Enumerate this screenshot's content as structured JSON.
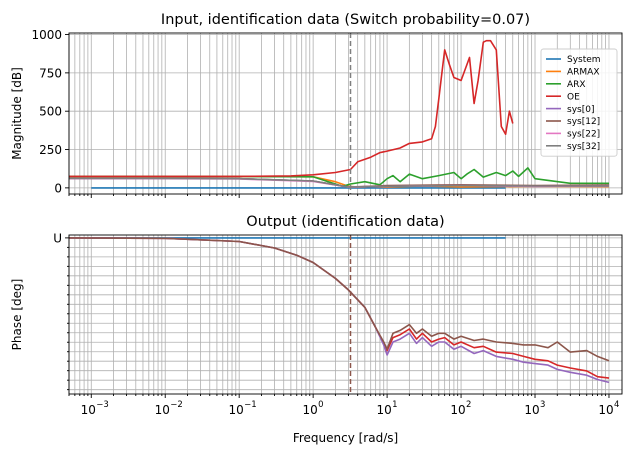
{
  "chart_data": [
    {
      "type": "line",
      "title": "Input, identification data (Switch probability=0.07)",
      "xlabel": "",
      "ylabel": "Magnitude [dB]",
      "xscale": "log",
      "xlim": [
        0.0005,
        15000
      ],
      "ylim": [
        -40,
        1010
      ],
      "yticks": [
        "0",
        "250",
        "500",
        "750",
        "1000"
      ],
      "grid": true,
      "legend_position": "right",
      "vline_x": 3.2,
      "series": [
        {
          "name": "System",
          "color": "#1f77b4",
          "x": [
            0.001,
            400
          ],
          "y": [
            0,
            0
          ]
        },
        {
          "name": "ARMAX",
          "color": "#ff7f0e",
          "x": [
            0.0005,
            0.01,
            0.1,
            0.5,
            1,
            2,
            3,
            4,
            6,
            10,
            30,
            100,
            1000,
            10000
          ],
          "y": [
            75,
            75,
            75,
            73,
            72,
            40,
            10,
            5,
            8,
            5,
            12,
            6,
            10,
            8
          ]
        },
        {
          "name": "ARX",
          "color": "#2ca02c",
          "x": [
            0.0005,
            0.1,
            1,
            1.6,
            2.5,
            3.2,
            5,
            8,
            10,
            12,
            15,
            20,
            30,
            50,
            80,
            100,
            120,
            150,
            200,
            300,
            400,
            500,
            600,
            800,
            1000,
            3000,
            10000
          ],
          "y": [
            75,
            74,
            72,
            40,
            10,
            25,
            40,
            20,
            60,
            80,
            40,
            90,
            60,
            80,
            100,
            60,
            90,
            120,
            70,
            100,
            80,
            110,
            75,
            130,
            60,
            30,
            30
          ]
        },
        {
          "name": "OE",
          "color": "#d62728",
          "x": [
            0.0005,
            0.01,
            0.1,
            0.5,
            1,
            2,
            3.2,
            4,
            6,
            8,
            10,
            15,
            20,
            30,
            40,
            45,
            50,
            55,
            60,
            70,
            80,
            100,
            130,
            150,
            170,
            200,
            220,
            250,
            300,
            350,
            400,
            450,
            500
          ],
          "y": [
            75,
            75,
            75,
            78,
            85,
            100,
            120,
            170,
            200,
            230,
            240,
            260,
            290,
            300,
            320,
            400,
            580,
            750,
            900,
            800,
            720,
            700,
            850,
            550,
            700,
            950,
            960,
            960,
            900,
            400,
            350,
            500,
            420
          ]
        },
        {
          "name": "sys[0]",
          "color": "#9467bd",
          "x": [
            0.0005,
            0.01,
            0.1,
            1,
            3,
            10,
            100,
            1000,
            10000
          ],
          "y": [
            62,
            62,
            60,
            45,
            5,
            10,
            15,
            10,
            12
          ]
        },
        {
          "name": "sys[12]",
          "color": "#8c564b",
          "x": [
            0.0005,
            0.01,
            0.1,
            1,
            3,
            10,
            100,
            1000,
            10000
          ],
          "y": [
            62,
            62,
            60,
            45,
            5,
            15,
            20,
            15,
            18
          ]
        },
        {
          "name": "sys[22]",
          "color": "#e377c2",
          "x": [
            0.0005,
            0.01,
            0.1,
            1,
            3,
            10,
            100,
            1000,
            10000
          ],
          "y": [
            60,
            60,
            58,
            42,
            5,
            10,
            15,
            10,
            12
          ]
        },
        {
          "name": "sys[32]",
          "color": "#7f7f7f",
          "x": [
            0.0005,
            0.01,
            0.1,
            1,
            3,
            10,
            100,
            1000,
            10000
          ],
          "y": [
            62,
            62,
            60,
            45,
            5,
            10,
            15,
            12,
            12
          ]
        }
      ]
    },
    {
      "type": "line",
      "title": "Output (identification data)",
      "xlabel": "Frequency [rad/s]",
      "ylabel": "Phase [deg]",
      "xscale": "log",
      "xlim": [
        0.0005,
        15000
      ],
      "ylim": [
        -1.08,
        0.02
      ],
      "yticks": [
        "U"
      ],
      "xticks": [
        0.001,
        0.01,
        0.1,
        1,
        10,
        100,
        1000,
        10000
      ],
      "xtick_labels": [
        {
          "base": "10",
          "exp": "−3"
        },
        {
          "base": "10",
          "exp": "−2"
        },
        {
          "base": "10",
          "exp": "−1"
        },
        {
          "base": "10",
          "exp": "0"
        },
        {
          "base": "10",
          "exp": "1"
        },
        {
          "base": "10",
          "exp": "2"
        },
        {
          "base": "10",
          "exp": "3"
        },
        {
          "base": "10",
          "exp": "4"
        }
      ],
      "grid": true,
      "vline_x": 3.2,
      "series": [
        {
          "name": "System",
          "color": "#1f77b4",
          "x": [
            0.001,
            400
          ],
          "y": [
            0,
            0
          ]
        },
        {
          "name": "OE",
          "color": "#d62728",
          "x": [
            0.0005,
            0.01,
            0.1,
            0.3,
            0.6,
            1,
            2,
            3,
            5,
            7,
            9,
            10,
            12,
            15,
            20,
            25,
            30,
            40,
            50,
            60,
            80,
            100,
            150,
            200,
            300,
            500,
            700,
            1000,
            1500,
            2000,
            3000,
            5000,
            7000,
            10000
          ],
          "y": [
            0,
            -0.003,
            -0.025,
            -0.07,
            -0.12,
            -0.17,
            -0.28,
            -0.36,
            -0.48,
            -0.62,
            -0.73,
            -0.78,
            -0.69,
            -0.67,
            -0.63,
            -0.7,
            -0.66,
            -0.72,
            -0.7,
            -0.69,
            -0.74,
            -0.72,
            -0.76,
            -0.75,
            -0.79,
            -0.8,
            -0.82,
            -0.84,
            -0.85,
            -0.88,
            -0.9,
            -0.92,
            -0.96,
            -0.97
          ]
        },
        {
          "name": "sys[0]",
          "color": "#9467bd",
          "x": [
            0.0005,
            0.01,
            0.1,
            0.3,
            0.6,
            1,
            2,
            3,
            5,
            7,
            9,
            10,
            12,
            15,
            20,
            25,
            30,
            40,
            50,
            60,
            80,
            100,
            150,
            200,
            300,
            500,
            700,
            1000,
            1500,
            2000,
            3000,
            5000,
            7000,
            10000
          ],
          "y": [
            0,
            -0.003,
            -0.025,
            -0.07,
            -0.12,
            -0.17,
            -0.28,
            -0.36,
            -0.48,
            -0.62,
            -0.74,
            -0.81,
            -0.72,
            -0.7,
            -0.66,
            -0.73,
            -0.69,
            -0.75,
            -0.72,
            -0.72,
            -0.77,
            -0.75,
            -0.8,
            -0.78,
            -0.82,
            -0.84,
            -0.86,
            -0.87,
            -0.88,
            -0.91,
            -0.93,
            -0.95,
            -0.98,
            -1.0
          ]
        },
        {
          "name": "sys[12]",
          "color": "#8c564b",
          "x": [
            0.0005,
            0.01,
            0.1,
            0.3,
            0.6,
            1,
            2,
            3,
            5,
            7,
            9,
            10,
            12,
            15,
            20,
            25,
            30,
            40,
            50,
            60,
            80,
            100,
            150,
            200,
            300,
            500,
            700,
            1000,
            1500,
            2000,
            3000,
            5000,
            7000,
            10000
          ],
          "y": [
            0,
            -0.003,
            -0.025,
            -0.07,
            -0.12,
            -0.17,
            -0.28,
            -0.36,
            -0.48,
            -0.62,
            -0.72,
            -0.77,
            -0.66,
            -0.64,
            -0.6,
            -0.66,
            -0.63,
            -0.68,
            -0.66,
            -0.66,
            -0.7,
            -0.68,
            -0.71,
            -0.7,
            -0.72,
            -0.73,
            -0.74,
            -0.74,
            -0.76,
            -0.72,
            -0.79,
            -0.78,
            -0.82,
            -0.85
          ]
        }
      ]
    }
  ]
}
